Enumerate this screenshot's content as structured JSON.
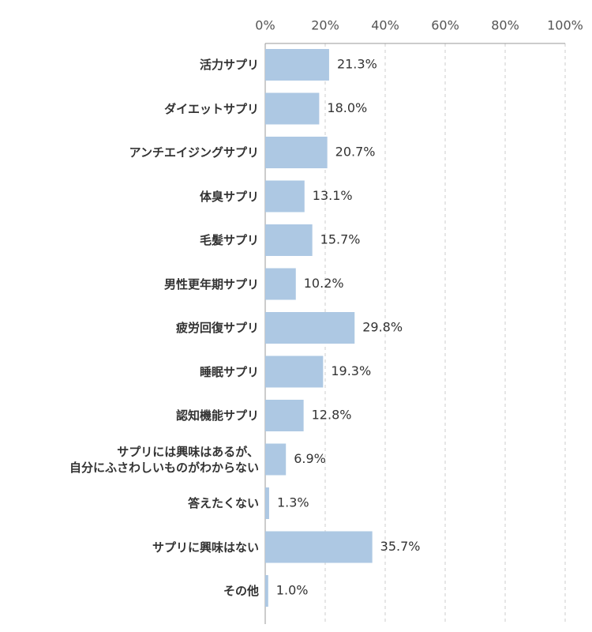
{
  "chart_data": {
    "type": "bar",
    "orientation": "horizontal",
    "categories": [
      "活力サプリ",
      "ダイエットサプリ",
      "アンチエイジングサプリ",
      "体臭サプリ",
      "毛髪サプリ",
      "男性更年期サプリ",
      "疲労回復サプリ",
      "睡眠サプリ",
      "認知機能サプリ",
      "サプリには興味はあるが、\n自分にふさわしいものがわからない",
      "答えたくない",
      "サプリに興味はない",
      "その他"
    ],
    "values": [
      21.3,
      18.0,
      20.7,
      13.1,
      15.7,
      10.2,
      29.8,
      19.3,
      12.8,
      6.9,
      1.3,
      35.7,
      1.0
    ],
    "value_labels": [
      "21.3%",
      "18.0%",
      "20.7%",
      "13.1%",
      "15.7%",
      "10.2%",
      "29.8%",
      "19.3%",
      "12.8%",
      "6.9%",
      "1.3%",
      "35.7%",
      "1.0%"
    ],
    "color": "#adc8e3",
    "xlim": [
      0,
      100
    ],
    "xticks": [
      {
        "value": 0,
        "label": "0%"
      },
      {
        "value": 20,
        "label": "20%"
      },
      {
        "value": 40,
        "label": "40%"
      },
      {
        "value": 60,
        "label": "60%"
      },
      {
        "value": 80,
        "label": "80%"
      },
      {
        "value": 100,
        "label": "100%"
      }
    ],
    "grid": true
  }
}
